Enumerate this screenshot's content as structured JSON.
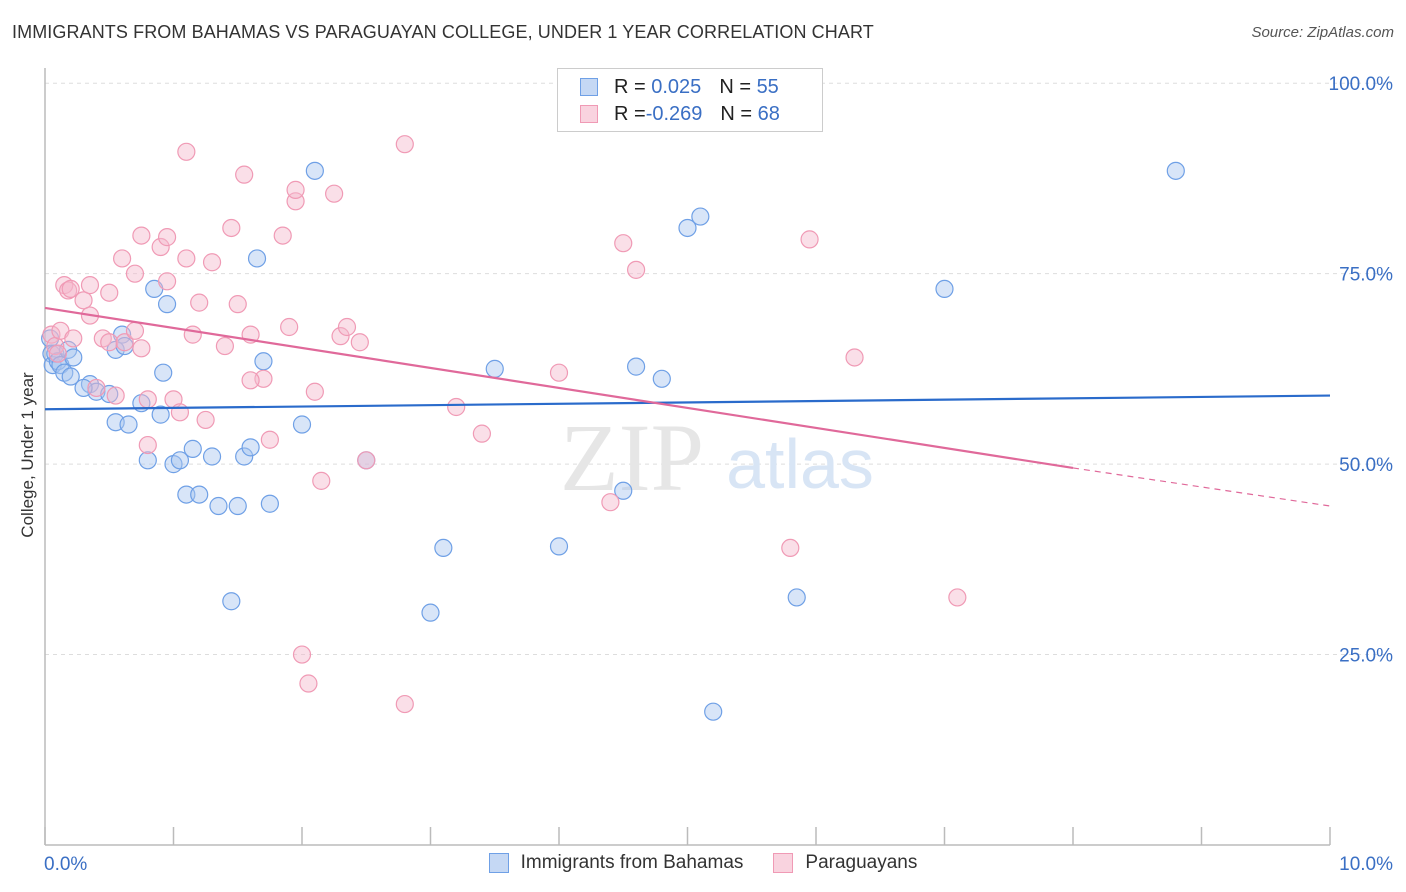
{
  "header": {
    "title": "IMMIGRANTS FROM BAHAMAS VS PARAGUAYAN COLLEGE, UNDER 1 YEAR CORRELATION CHART",
    "source": "Source: ZipAtlas.com"
  },
  "watermark": {
    "zip": "ZIP",
    "atlas": "atlas"
  },
  "legend": {
    "rows": [
      {
        "r_label": "R = ",
        "r_value": "0.025",
        "n_label": "N = ",
        "n_value": "55",
        "color": "#a9c6f0"
      },
      {
        "r_label": "R = ",
        "r_value": "-0.269",
        "n_label": "N = ",
        "n_value": "68",
        "color": "#f5b8cb"
      }
    ]
  },
  "chart_data": {
    "type": "scatter",
    "title": "IMMIGRANTS FROM BAHAMAS VS PARAGUAYAN COLLEGE, UNDER 1 YEAR CORRELATION CHART",
    "xlabel": "",
    "ylabel": "College, Under 1 year",
    "xlim": [
      0,
      10
    ],
    "ylim": [
      0,
      102
    ],
    "x_tick_labels": [
      "0.0%",
      "10.0%"
    ],
    "y_tick_labels": [
      "100.0%",
      "75.0%",
      "50.0%",
      "25.0%"
    ],
    "y_ticks": [
      100,
      75,
      50,
      25
    ],
    "grid": true,
    "series": [
      {
        "name": "Immigrants from Bahamas",
        "color": "#6fa0e6",
        "fill": "#a9c6f0",
        "line_color": "#2a6bcb",
        "trend": {
          "x0": 0,
          "y0": 57.2,
          "x1": 10,
          "y1": 59.0
        },
        "points": [
          [
            0.04,
            66.5
          ],
          [
            0.05,
            64.5
          ],
          [
            0.06,
            63.0
          ],
          [
            0.08,
            64.5
          ],
          [
            0.1,
            63.5
          ],
          [
            0.12,
            63.0
          ],
          [
            0.15,
            62.0
          ],
          [
            0.18,
            65.0
          ],
          [
            0.2,
            61.5
          ],
          [
            0.22,
            64.0
          ],
          [
            0.35,
            60.5
          ],
          [
            0.4,
            59.5
          ],
          [
            0.5,
            59.2
          ],
          [
            0.55,
            65.0
          ],
          [
            0.6,
            67.0
          ],
          [
            0.62,
            65.5
          ],
          [
            0.55,
            55.5
          ],
          [
            0.65,
            55.2
          ],
          [
            0.75,
            58.0
          ],
          [
            0.9,
            56.5
          ],
          [
            0.85,
            73.0
          ],
          [
            0.95,
            71.0
          ],
          [
            0.92,
            62.0
          ],
          [
            1.0,
            50.0
          ],
          [
            0.8,
            50.5
          ],
          [
            1.05,
            50.5
          ],
          [
            1.1,
            46.0
          ],
          [
            1.2,
            46.0
          ],
          [
            1.15,
            52.0
          ],
          [
            1.3,
            51.0
          ],
          [
            1.35,
            44.5
          ],
          [
            1.5,
            44.5
          ],
          [
            1.55,
            51.0
          ],
          [
            1.65,
            77.0
          ],
          [
            1.6,
            52.2
          ],
          [
            1.45,
            32.0
          ],
          [
            1.7,
            63.5
          ],
          [
            1.75,
            44.8
          ],
          [
            2.0,
            55.2
          ],
          [
            2.1,
            88.5
          ],
          [
            2.5,
            50.5
          ],
          [
            3.1,
            39.0
          ],
          [
            3.0,
            30.5
          ],
          [
            3.5,
            62.5
          ],
          [
            4.0,
            39.2
          ],
          [
            4.5,
            46.5
          ],
          [
            4.6,
            62.8
          ],
          [
            4.8,
            61.2
          ],
          [
            5.0,
            81.0
          ],
          [
            5.1,
            82.5
          ],
          [
            5.2,
            17.5
          ],
          [
            5.85,
            32.5
          ],
          [
            7.0,
            73.0
          ],
          [
            8.8,
            88.5
          ],
          [
            0.3,
            60.0
          ]
        ]
      },
      {
        "name": "Paraguayans",
        "color": "#f09ab5",
        "fill": "#f5b8cb",
        "line_color": "#e0699a",
        "trend": {
          "x0": 0,
          "y0": 70.5,
          "x1": 8.0,
          "y1": 49.5
        },
        "trend_dashed": {
          "x0": 8.0,
          "y0": 49.5,
          "x1": 10,
          "y1": 44.5
        },
        "points": [
          [
            0.05,
            67.0
          ],
          [
            0.08,
            65.5
          ],
          [
            0.1,
            64.5
          ],
          [
            0.12,
            67.5
          ],
          [
            0.15,
            73.5
          ],
          [
            0.18,
            72.8
          ],
          [
            0.2,
            73.0
          ],
          [
            0.22,
            66.5
          ],
          [
            0.3,
            71.5
          ],
          [
            0.35,
            69.5
          ],
          [
            0.35,
            73.5
          ],
          [
            0.4,
            60.0
          ],
          [
            0.45,
            66.5
          ],
          [
            0.5,
            72.5
          ],
          [
            0.5,
            66.0
          ],
          [
            0.55,
            59.0
          ],
          [
            0.6,
            77.0
          ],
          [
            0.62,
            66.0
          ],
          [
            0.7,
            75.0
          ],
          [
            0.75,
            80.0
          ],
          [
            0.75,
            65.2
          ],
          [
            0.7,
            67.5
          ],
          [
            0.8,
            52.5
          ],
          [
            0.8,
            58.5
          ],
          [
            0.9,
            78.5
          ],
          [
            0.95,
            79.8
          ],
          [
            0.95,
            74.0
          ],
          [
            1.0,
            58.5
          ],
          [
            1.05,
            56.8
          ],
          [
            1.1,
            91.0
          ],
          [
            1.1,
            77.0
          ],
          [
            1.15,
            67.0
          ],
          [
            1.2,
            71.2
          ],
          [
            1.25,
            55.8
          ],
          [
            1.3,
            76.5
          ],
          [
            1.4,
            65.5
          ],
          [
            1.45,
            81.0
          ],
          [
            1.5,
            71.0
          ],
          [
            1.55,
            88.0
          ],
          [
            1.6,
            67.0
          ],
          [
            1.7,
            61.2
          ],
          [
            1.75,
            53.2
          ],
          [
            1.85,
            80.0
          ],
          [
            1.9,
            68.0
          ],
          [
            1.95,
            84.5
          ],
          [
            1.95,
            86.0
          ],
          [
            2.0,
            25.0
          ],
          [
            2.05,
            21.2
          ],
          [
            2.1,
            59.5
          ],
          [
            2.15,
            47.8
          ],
          [
            2.25,
            85.5
          ],
          [
            2.3,
            66.8
          ],
          [
            2.35,
            68.0
          ],
          [
            2.45,
            66.0
          ],
          [
            2.5,
            50.5
          ],
          [
            2.8,
            18.5
          ],
          [
            2.8,
            92.0
          ],
          [
            3.2,
            57.5
          ],
          [
            3.4,
            54.0
          ],
          [
            4.0,
            62.0
          ],
          [
            4.4,
            45.0
          ],
          [
            4.5,
            79.0
          ],
          [
            4.6,
            75.5
          ],
          [
            5.8,
            39.0
          ],
          [
            5.95,
            79.5
          ],
          [
            6.3,
            64.0
          ],
          [
            7.1,
            32.5
          ],
          [
            1.6,
            61.0
          ]
        ]
      }
    ]
  },
  "bottom_legend": {
    "items": [
      {
        "label": "Immigrants from Bahamas",
        "color": "#a9c6f0"
      },
      {
        "label": "Paraguayans",
        "color": "#f5b8cb"
      }
    ]
  }
}
